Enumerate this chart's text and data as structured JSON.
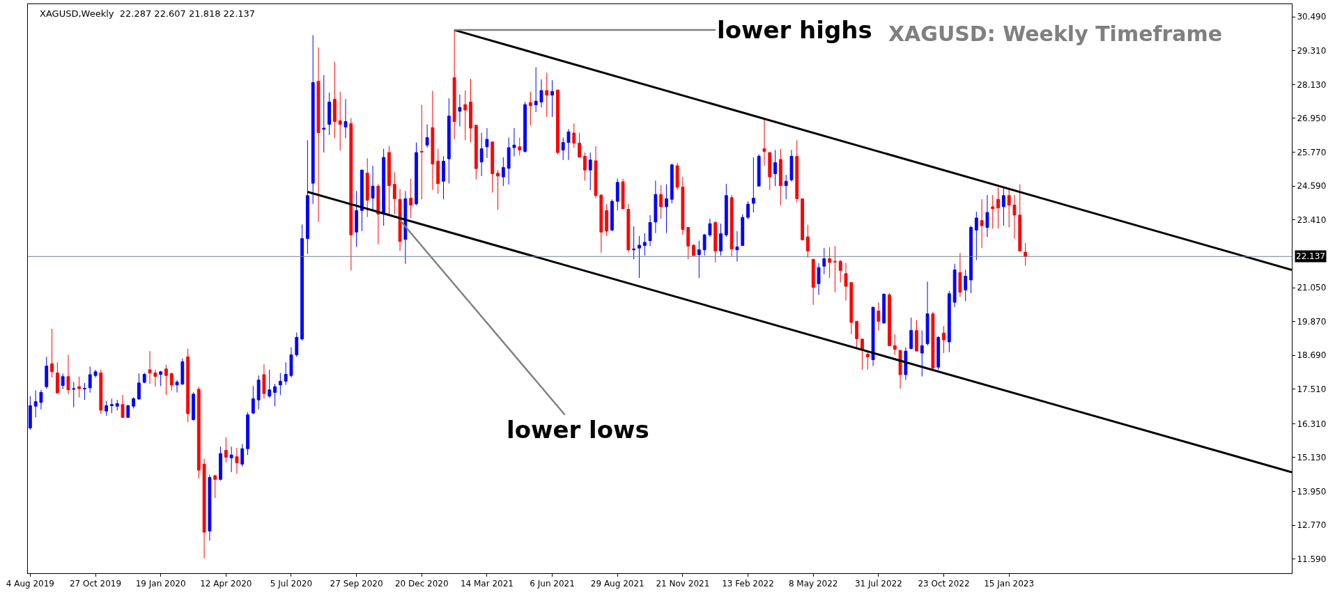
{
  "chart_data": {
    "type": "candlestick",
    "title": "XAGUSD: Weekly Timeframe",
    "subtitle": "XAGUSD,Weekly  22.287 22.607 21.818 22.137",
    "colors": [
      "#0000ff",
      "#0000ff",
      "#0000ff",
      "#0000ff",
      "#ff0000",
      "#ff0000",
      "#0000ff",
      "#ff0000",
      "#0000ff",
      "#ff0000",
      "#0000ff",
      "#0000ff",
      "#0000ff",
      "#ff0000",
      "#0000ff",
      "#0000ff",
      "#0000ff",
      "#ff0000",
      "#0000ff",
      "#0000ff",
      "#0000ff",
      "#0000ff",
      "#ff0000",
      "#ff0000",
      "#0000ff",
      "#ff0000",
      "#ff0000",
      "#0000ff",
      "#0000ff",
      "#ff0000",
      "#0000ff",
      "#ff0000",
      "#ff0000",
      "#0000ff",
      "#ff0000",
      "#0000ff",
      "#ff0000",
      "#0000ff",
      "#ff0000",
      "#0000ff",
      "#0000ff",
      "#0000ff",
      "#0000ff",
      "#ff0000",
      "#0000ff",
      "#0000ff",
      "#0000ff",
      "#0000ff",
      "#0000ff",
      "#0000ff",
      "#0000ff",
      "#0000ff",
      "#0000ff",
      "#ff0000",
      "#0000ff",
      "#0000ff",
      "#ff0000",
      "#ff0000",
      "#0000ff",
      "#ff0000",
      "#0000ff",
      "#0000ff",
      "#ff0000",
      "#0000ff",
      "#ff0000",
      "#0000ff",
      "#ff0000",
      "#ff0000",
      "#ff0000",
      "#0000ff",
      "#ff0000",
      "#0000ff",
      "#ff0000",
      "#0000ff",
      "#ff0000",
      "#ff0000",
      "#0000ff",
      "#0000ff",
      "#ff0000",
      "#0000ff",
      "#ff0000",
      "#ff0000",
      "#ff0000",
      "#0000ff",
      "#0000ff",
      "#ff0000",
      "#ff0000",
      "#0000ff",
      "#0000ff",
      "#0000ff",
      "#ff0000",
      "#0000ff",
      "#ff0000",
      "#0000ff",
      "#0000ff",
      "#ff0000",
      "#0000ff",
      "#ff0000",
      "#0000ff",
      "#0000ff",
      "#ff0000",
      "#ff0000",
      "#ff0000",
      "#0000ff",
      "#ff0000",
      "#ff0000",
      "#ff0000",
      "#0000ff",
      "#0000ff",
      "#ff0000",
      "#ff0000",
      "#0000ff",
      "#0000ff",
      "#0000ff",
      "#0000ff",
      "#0000ff",
      "#ff0000",
      "#0000ff",
      "#0000ff",
      "#ff0000",
      "#ff0000",
      "#ff0000",
      "#ff0000",
      "#0000ff",
      "#0000ff",
      "#0000ff",
      "#ff0000",
      "#0000ff",
      "#0000ff",
      "#ff0000",
      "#0000ff",
      "#0000ff",
      "#0000ff",
      "#0000ff",
      "#0000ff",
      "#ff0000",
      "#ff0000",
      "#0000ff",
      "#ff0000",
      "#0000ff",
      "#0000ff",
      "#ff0000",
      "#ff0000",
      "#ff0000",
      "#ff0000",
      "#0000ff",
      "#0000ff",
      "#ff0000",
      "#ff0000",
      "#ff0000",
      "#ff0000",
      "#ff0000",
      "#ff0000",
      "#ff0000",
      "#ff0000",
      "#0000ff",
      "#ff0000",
      "#0000ff",
      "#ff0000",
      "#ff0000",
      "#ff0000",
      "#0000ff",
      "#0000ff",
      "#ff0000",
      "#0000ff",
      "#0000ff",
      "#ff0000",
      "#0000ff",
      "#ff0000",
      "#0000ff",
      "#0000ff",
      "#ff0000",
      "#0000ff",
      "#0000ff",
      "#0000ff",
      "#ff0000",
      "#0000ff",
      "#ff0000",
      "#ff0000",
      "#0000ff",
      "#ff0000",
      "#ff0000",
      "#ff0000",
      "#ff0000"
    ],
    "x": [
      "2019-08-04",
      "2019-08-11",
      "2019-08-18",
      "2019-08-25",
      "2019-09-01",
      "2019-09-08",
      "2019-09-15",
      "2019-09-22",
      "2019-09-29",
      "2019-10-06",
      "2019-10-13",
      "2019-10-20",
      "2019-10-27",
      "2019-11-03",
      "2019-11-10",
      "2019-11-17",
      "2019-11-24",
      "2019-12-01",
      "2019-12-08",
      "2019-12-15",
      "2019-12-22",
      "2019-12-29",
      "2020-01-05",
      "2020-01-12",
      "2020-01-19",
      "2020-01-26",
      "2020-02-02",
      "2020-02-09",
      "2020-02-16",
      "2020-02-23",
      "2020-03-01",
      "2020-03-08",
      "2020-03-15",
      "2020-03-22",
      "2020-03-29",
      "2020-04-05",
      "2020-04-12",
      "2020-04-19",
      "2020-04-26",
      "2020-05-03",
      "2020-05-10",
      "2020-05-17",
      "2020-05-24",
      "2020-05-31",
      "2020-06-07",
      "2020-06-14",
      "2020-06-21",
      "2020-06-28",
      "2020-07-05",
      "2020-07-12",
      "2020-07-19",
      "2020-07-26",
      "2020-08-02",
      "2020-08-09",
      "2020-08-16",
      "2020-08-23",
      "2020-08-30",
      "2020-09-06",
      "2020-09-13",
      "2020-09-20",
      "2020-09-27",
      "2020-10-04",
      "2020-10-11",
      "2020-10-18",
      "2020-10-25",
      "2020-11-01",
      "2020-11-08",
      "2020-11-15",
      "2020-11-22",
      "2020-11-29",
      "2020-12-06",
      "2020-12-13",
      "2020-12-20",
      "2020-12-27",
      "2021-01-03",
      "2021-01-10",
      "2021-01-17",
      "2021-01-24",
      "2021-01-31",
      "2021-02-07",
      "2021-02-14",
      "2021-02-21",
      "2021-02-28",
      "2021-03-07",
      "2021-03-14",
      "2021-03-21",
      "2021-03-28",
      "2021-04-04",
      "2021-04-11",
      "2021-04-18",
      "2021-04-25",
      "2021-05-02",
      "2021-05-09",
      "2021-05-16",
      "2021-05-23",
      "2021-05-30",
      "2021-06-06",
      "2021-06-13",
      "2021-06-20",
      "2021-06-27",
      "2021-07-04",
      "2021-07-11",
      "2021-07-18",
      "2021-07-25",
      "2021-08-01",
      "2021-08-08",
      "2021-08-15",
      "2021-08-22",
      "2021-08-29",
      "2021-09-05",
      "2021-09-12",
      "2021-09-19",
      "2021-09-26",
      "2021-10-03",
      "2021-10-10",
      "2021-10-17",
      "2021-10-24",
      "2021-10-31",
      "2021-11-07",
      "2021-11-14",
      "2021-11-21",
      "2021-11-28",
      "2021-12-05",
      "2021-12-12",
      "2021-12-19",
      "2021-12-26",
      "2022-01-02",
      "2022-01-09",
      "2022-01-16",
      "2022-01-23",
      "2022-01-30",
      "2022-02-06",
      "2022-02-13",
      "2022-02-20",
      "2022-02-27",
      "2022-03-06",
      "2022-03-13",
      "2022-03-20",
      "2022-03-27",
      "2022-04-03",
      "2022-04-10",
      "2022-04-17",
      "2022-04-24",
      "2022-05-01",
      "2022-05-08",
      "2022-05-15",
      "2022-05-22",
      "2022-05-29",
      "2022-06-05",
      "2022-06-12",
      "2022-06-19",
      "2022-06-26",
      "2022-07-03",
      "2022-07-10",
      "2022-07-17",
      "2022-07-24",
      "2022-07-31",
      "2022-08-07",
      "2022-08-14",
      "2022-08-21",
      "2022-08-28",
      "2022-09-04",
      "2022-09-11",
      "2022-09-18",
      "2022-09-25",
      "2022-10-02",
      "2022-10-09",
      "2022-10-16",
      "2022-10-23",
      "2022-10-30",
      "2022-11-06",
      "2022-11-13",
      "2022-11-20",
      "2022-11-27",
      "2022-12-04",
      "2022-12-11",
      "2022-12-18",
      "2022-12-25",
      "2023-01-01",
      "2023-01-08",
      "2023-01-15",
      "2023-01-22",
      "2023-01-29",
      "2023-02-05"
    ],
    "ohlc": [
      [
        16.16,
        17.27,
        16.1,
        16.94
      ],
      [
        16.92,
        17.47,
        16.53,
        17.08
      ],
      [
        17.05,
        17.49,
        16.81,
        17.4
      ],
      [
        17.6,
        18.64,
        17.53,
        18.32
      ],
      [
        18.4,
        19.62,
        17.92,
        18.12
      ],
      [
        18.08,
        18.45,
        17.38,
        17.38
      ],
      [
        17.64,
        18.06,
        17.51,
        17.95
      ],
      [
        17.95,
        18.71,
        17.34,
        17.49
      ],
      [
        17.51,
        17.76,
        16.88,
        17.53
      ],
      [
        17.6,
        17.95,
        17.23,
        17.53
      ],
      [
        17.52,
        17.73,
        17.14,
        17.54
      ],
      [
        17.56,
        18.3,
        17.39,
        18.02
      ],
      [
        17.99,
        18.19,
        17.92,
        18.12
      ],
      [
        18.08,
        18.19,
        16.65,
        16.78
      ],
      [
        16.75,
        17.1,
        16.59,
        16.94
      ],
      [
        16.94,
        17.18,
        16.68,
        16.98
      ],
      [
        16.92,
        17.14,
        16.77,
        17.01
      ],
      [
        16.98,
        17.31,
        16.52,
        16.53
      ],
      [
        16.53,
        16.97,
        16.52,
        16.94
      ],
      [
        16.92,
        17.23,
        16.84,
        17.18
      ],
      [
        17.17,
        18.06,
        17.14,
        17.73
      ],
      [
        17.75,
        18.08,
        17.72,
        18.03
      ],
      [
        18.19,
        18.84,
        17.7,
        18.08
      ],
      [
        18.08,
        18.19,
        17.6,
        17.96
      ],
      [
        18.03,
        18.15,
        17.62,
        18.12
      ],
      [
        18.22,
        18.36,
        17.31,
        17.99
      ],
      [
        18.06,
        18.08,
        17.47,
        17.66
      ],
      [
        17.66,
        17.83,
        17.4,
        17.76
      ],
      [
        17.69,
        18.58,
        17.66,
        18.47
      ],
      [
        18.64,
        18.93,
        16.36,
        16.66
      ],
      [
        16.45,
        17.4,
        16.42,
        17.34
      ],
      [
        17.51,
        17.6,
        14.4,
        14.69
      ],
      [
        14.9,
        15.09,
        11.62,
        12.53
      ],
      [
        12.57,
        14.53,
        12.24,
        14.44
      ],
      [
        14.5,
        14.53,
        13.72,
        14.37
      ],
      [
        14.37,
        15.51,
        14.33,
        15.27
      ],
      [
        15.38,
        15.84,
        14.96,
        15.14
      ],
      [
        15.12,
        15.51,
        14.62,
        15.22
      ],
      [
        15.16,
        15.47,
        14.57,
        14.95
      ],
      [
        14.9,
        15.6,
        14.82,
        15.44
      ],
      [
        15.44,
        16.71,
        15.22,
        16.62
      ],
      [
        16.68,
        17.62,
        16.64,
        17.18
      ],
      [
        17.14,
        17.99,
        16.81,
        17.83
      ],
      [
        18.02,
        18.38,
        17.18,
        17.36
      ],
      [
        17.27,
        18.19,
        17.21,
        17.49
      ],
      [
        17.4,
        17.7,
        16.92,
        17.6
      ],
      [
        17.66,
        18.08,
        17.31,
        17.79
      ],
      [
        17.79,
        18.45,
        17.66,
        18.03
      ],
      [
        17.99,
        18.97,
        17.92,
        18.71
      ],
      [
        18.71,
        19.49,
        18.64,
        19.32
      ],
      [
        19.26,
        23.25,
        19.21,
        22.76
      ],
      [
        22.76,
        26.19,
        22.23,
        24.26
      ],
      [
        24.69,
        29.85,
        23.97,
        28.2
      ],
      [
        28.24,
        29.42,
        23.34,
        26.45
      ],
      [
        26.57,
        28.46,
        25.76,
        26.61
      ],
      [
        26.74,
        27.85,
        26.37,
        27.52
      ],
      [
        27.62,
        28.92,
        26.26,
        26.84
      ],
      [
        26.87,
        27.88,
        25.83,
        26.74
      ],
      [
        26.65,
        27.62,
        26.26,
        26.84
      ],
      [
        26.77,
        26.96,
        21.65,
        22.89
      ],
      [
        22.99,
        24.42,
        22.47,
        23.74
      ],
      [
        23.74,
        25.15,
        23.02,
        25.15
      ],
      [
        25.04,
        25.56,
        23.51,
        24.1
      ],
      [
        24.17,
        25.3,
        23.74,
        24.59
      ],
      [
        24.59,
        24.65,
        22.56,
        23.61
      ],
      [
        23.63,
        25.89,
        23.21,
        25.59
      ],
      [
        25.76,
        25.99,
        23.61,
        24.61
      ],
      [
        24.65,
        25.07,
        23.61,
        24.15
      ],
      [
        24.13,
        24.49,
        22.33,
        22.66
      ],
      [
        22.73,
        24.42,
        21.88,
        24.15
      ],
      [
        24.17,
        24.85,
        23.48,
        23.93
      ],
      [
        23.97,
        26.11,
        23.93,
        25.76
      ],
      [
        25.8,
        27.42,
        24.13,
        25.78
      ],
      [
        26.02,
        26.74,
        25.93,
        26.28
      ],
      [
        26.63,
        27.91,
        24.45,
        25.36
      ],
      [
        25.46,
        25.89,
        24.32,
        24.68
      ],
      [
        24.76,
        25.63,
        24.13,
        25.46
      ],
      [
        25.54,
        27.65,
        24.68,
        27.03
      ],
      [
        28.37,
        30.03,
        26.22,
        26.84
      ],
      [
        27.2,
        27.78,
        26.67,
        27.33
      ],
      [
        27.43,
        27.92,
        26.19,
        27.24
      ],
      [
        27.52,
        28.33,
        26.11,
        26.61
      ],
      [
        26.71,
        26.71,
        24.82,
        25.2
      ],
      [
        25.43,
        26.45,
        24.94,
        25.89
      ],
      [
        25.96,
        26.61,
        25.57,
        26.22
      ],
      [
        26.13,
        26.13,
        24.36,
        25.02
      ],
      [
        25.04,
        25.15,
        23.76,
        24.94
      ],
      [
        24.91,
        25.59,
        24.59,
        25.24
      ],
      [
        25.21,
        26.28,
        24.65,
        25.93
      ],
      [
        25.93,
        26.61,
        25.63,
        26.02
      ],
      [
        25.96,
        26.28,
        25.66,
        25.85
      ],
      [
        25.8,
        27.52,
        25.76,
        27.43
      ],
      [
        27.5,
        27.88,
        26.7,
        27.39
      ],
      [
        27.42,
        28.73,
        27.17,
        27.55
      ],
      [
        27.52,
        28.31,
        27.33,
        27.92
      ],
      [
        27.92,
        28.54,
        27.0,
        27.76
      ],
      [
        27.76,
        28.28,
        27.0,
        27.89
      ],
      [
        27.94,
        27.94,
        25.7,
        25.76
      ],
      [
        25.85,
        26.28,
        25.5,
        26.11
      ],
      [
        26.11,
        26.58,
        25.5,
        26.48
      ],
      [
        26.44,
        26.77,
        25.93,
        26.09
      ],
      [
        26.09,
        26.45,
        25.6,
        25.6
      ],
      [
        25.63,
        25.76,
        24.78,
        25.15
      ],
      [
        25.15,
        25.76,
        24.45,
        25.5
      ],
      [
        25.47,
        25.98,
        24.17,
        24.26
      ],
      [
        24.28,
        24.28,
        22.27,
        22.99
      ],
      [
        23.74,
        23.96,
        22.85,
        23.02
      ],
      [
        23.06,
        24.13,
        23.02,
        24.06
      ],
      [
        24.06,
        24.85,
        23.74,
        24.72
      ],
      [
        24.74,
        24.85,
        23.8,
        23.8
      ],
      [
        23.78,
        23.96,
        22.3,
        22.37
      ],
      [
        22.37,
        23.19,
        22.04,
        22.4
      ],
      [
        22.43,
        22.85,
        21.39,
        22.53
      ],
      [
        22.52,
        22.95,
        22.17,
        22.63
      ],
      [
        22.69,
        23.58,
        22.5,
        23.32
      ],
      [
        23.34,
        24.78,
        22.95,
        24.3
      ],
      [
        24.3,
        24.62,
        23.45,
        23.87
      ],
      [
        23.87,
        24.65,
        22.95,
        24.15
      ],
      [
        24.13,
        25.37,
        23.99,
        25.33
      ],
      [
        25.3,
        25.4,
        24.45,
        24.55
      ],
      [
        24.56,
        24.91,
        22.89,
        23.08
      ],
      [
        23.15,
        23.15,
        22.04,
        22.5
      ],
      [
        22.53,
        22.56,
        22.17,
        22.17
      ],
      [
        22.2,
        22.69,
        21.39,
        22.37
      ],
      [
        22.37,
        22.93,
        22.17,
        22.89
      ],
      [
        22.89,
        23.45,
        22.82,
        23.28
      ],
      [
        23.32,
        23.37,
        21.93,
        22.33
      ],
      [
        22.33,
        23.28,
        22.17,
        22.93
      ],
      [
        22.89,
        24.67,
        22.82,
        24.26
      ],
      [
        24.19,
        24.28,
        22.14,
        22.4
      ],
      [
        22.37,
        23.02,
        21.96,
        22.47
      ],
      [
        22.52,
        23.61,
        22.5,
        23.5
      ],
      [
        23.5,
        24.06,
        23.44,
        23.96
      ],
      [
        23.99,
        25.59,
        23.67,
        24.17
      ],
      [
        24.59,
        25.7,
        24.59,
        25.63
      ],
      [
        25.89,
        26.9,
        25.3,
        25.8
      ],
      [
        25.76,
        25.76,
        24.45,
        24.91
      ],
      [
        25.02,
        25.85,
        24.59,
        25.41
      ],
      [
        25.52,
        25.89,
        23.93,
        24.61
      ],
      [
        24.61,
        24.98,
        24.13,
        24.76
      ],
      [
        24.81,
        25.85,
        24.75,
        25.63
      ],
      [
        25.63,
        26.19,
        24.02,
        24.15
      ],
      [
        24.15,
        24.15,
        22.69,
        22.72
      ],
      [
        22.82,
        23.24,
        22.1,
        22.33
      ],
      [
        22.04,
        22.04,
        20.45,
        21.06
      ],
      [
        21.19,
        21.91,
        20.8,
        21.75
      ],
      [
        21.8,
        22.43,
        21.52,
        22.06
      ],
      [
        22.06,
        22.46,
        21.39,
        21.93
      ],
      [
        21.97,
        22.5,
        20.89,
        21.95
      ],
      [
        21.97,
        22.01,
        21.23,
        21.65
      ],
      [
        21.54,
        21.91,
        20.6,
        21.1
      ],
      [
        21.23,
        21.23,
        19.43,
        19.84
      ],
      [
        19.88,
        19.88,
        18.93,
        19.27
      ],
      [
        19.26,
        19.26,
        18.19,
        18.88
      ],
      [
        18.73,
        18.84,
        18.19,
        18.64
      ],
      [
        18.54,
        20.37,
        18.32,
        20.37
      ],
      [
        20.24,
        20.54,
        19.56,
        19.88
      ],
      [
        19.82,
        20.86,
        19.79,
        20.82
      ],
      [
        20.8,
        20.86,
        19.03,
        19.03
      ],
      [
        19.03,
        19.43,
        18.71,
        18.9
      ],
      [
        18.86,
        18.9,
        17.53,
        18.02
      ],
      [
        18.02,
        18.97,
        17.83,
        18.84
      ],
      [
        18.93,
        20.01,
        18.9,
        19.56
      ],
      [
        19.56,
        19.92,
        18.84,
        18.84
      ],
      [
        18.77,
        19.56,
        17.96,
        19.03
      ],
      [
        19.1,
        21.26,
        19.03,
        20.14
      ],
      [
        20.14,
        20.21,
        18.19,
        18.25
      ],
      [
        18.28,
        19.36,
        18.19,
        19.32
      ],
      [
        19.47,
        19.71,
        18.77,
        19.23
      ],
      [
        19.16,
        20.93,
        18.8,
        20.84
      ],
      [
        20.54,
        21.88,
        20.37,
        21.67
      ],
      [
        21.58,
        22.26,
        20.73,
        20.89
      ],
      [
        20.97,
        21.67,
        20.58,
        21.45
      ],
      [
        21.32,
        23.21,
        20.86,
        23.15
      ],
      [
        23.06,
        23.7,
        22.01,
        23.48
      ],
      [
        23.39,
        24.13,
        22.43,
        23.21
      ],
      [
        23.15,
        24.28,
        22.82,
        23.67
      ],
      [
        23.87,
        24.28,
        23.11,
        23.8
      ],
      [
        24.13,
        24.54,
        23.11,
        23.83
      ],
      [
        23.87,
        24.58,
        23.21,
        24.26
      ],
      [
        24.26,
        24.52,
        23.15,
        23.93
      ],
      [
        23.93,
        24.28,
        22.76,
        23.58
      ],
      [
        23.58,
        24.65,
        22.33,
        22.33
      ],
      [
        22.287,
        22.607,
        21.818,
        22.137
      ]
    ],
    "series": [
      {
        "type": "line",
        "x": [
          "2021-01-31",
          "2024-01-14"
        ],
        "values": [
          30.03,
          21.67
        ],
        "color": "#000000"
      },
      {
        "type": "line",
        "x": [
          "2020-07-26",
          "2024-01-14"
        ],
        "values": [
          24.39,
          14.62
        ],
        "color": "#000000"
      }
    ],
    "annotations": [
      {
        "text": "lower highs",
        "x": "2021-01-31",
        "y": 30.03
      },
      {
        "text": "lower lows",
        "x": "2020-11-22",
        "y": 23.4
      }
    ],
    "ref_lines": [
      {
        "axis": "y",
        "value": 22.137,
        "label": "22.137",
        "color": "#708090"
      }
    ],
    "xlim": [
      "2019-08-01",
      "2024-01-14"
    ],
    "xticks": [
      {
        "value": "2019-08-04",
        "label": "4 Aug 2019"
      },
      {
        "value": "2019-10-27",
        "label": "27 Oct 2019"
      },
      {
        "value": "2020-01-19",
        "label": "19 Jan 2020"
      },
      {
        "value": "2020-04-12",
        "label": "12 Apr 2020"
      },
      {
        "value": "2020-07-05",
        "label": "5 Jul 2020"
      },
      {
        "value": "2020-09-27",
        "label": "27 Sep 2020"
      },
      {
        "value": "2020-12-20",
        "label": "20 Dec 2020"
      },
      {
        "value": "2021-03-14",
        "label": "14 Mar 2021"
      },
      {
        "value": "2021-06-06",
        "label": "6 Jun 2021"
      },
      {
        "value": "2021-08-29",
        "label": "29 Aug 2021"
      },
      {
        "value": "2021-11-21",
        "label": "21 Nov 2021"
      },
      {
        "value": "2022-02-13",
        "label": "13 Feb 2022"
      },
      {
        "value": "2022-05-08",
        "label": "8 May 2022"
      },
      {
        "value": "2022-07-31",
        "label": "31 Jul 2022"
      },
      {
        "value": "2022-10-23",
        "label": "23 Oct 2022"
      },
      {
        "value": "2023-01-15",
        "label": "15 Jan 2023"
      }
    ],
    "ylim": [
      11.1,
      30.93
    ],
    "yticks": [
      {
        "value": 30.49,
        "label": "30.490"
      },
      {
        "value": 29.31,
        "label": "29.310"
      },
      {
        "value": 28.13,
        "label": "28.130"
      },
      {
        "value": 26.95,
        "label": "26.950"
      },
      {
        "value": 25.77,
        "label": "25.770"
      },
      {
        "value": 24.59,
        "label": "24.590"
      },
      {
        "value": 23.41,
        "label": "23.410"
      },
      {
        "value": 21.05,
        "label": "21.050"
      },
      {
        "value": 19.87,
        "label": "19.870"
      },
      {
        "value": 18.69,
        "label": "18.690"
      },
      {
        "value": 17.51,
        "label": "17.510"
      },
      {
        "value": 16.31,
        "label": "16.310"
      },
      {
        "value": 15.13,
        "label": "15.130"
      },
      {
        "value": 13.95,
        "label": "13.950"
      },
      {
        "value": 12.77,
        "label": "12.770"
      },
      {
        "value": 11.59,
        "label": "11.590"
      }
    ],
    "grid": false
  }
}
